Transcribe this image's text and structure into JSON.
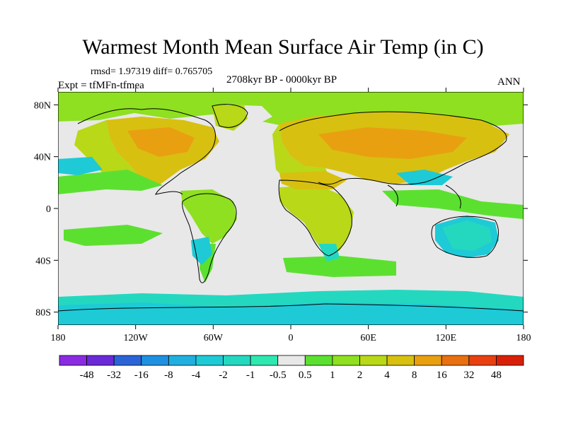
{
  "header": {
    "title": "Warmest Month Mean Surface Air Temp (in C)",
    "stats": "rmsd= 1.97319 diff= 0.765705",
    "expt": "Expt = tfMFn-tfmea",
    "period": "2708kyr BP - 0000kyr BP",
    "season": "ANN"
  },
  "axes": {
    "lon_ticks": [
      "180",
      "120W",
      "60W",
      "0",
      "60E",
      "120E",
      "180"
    ],
    "lat_ticks": [
      "80N",
      "40N",
      "0",
      "40S",
      "80S"
    ],
    "lon_range": [
      -180,
      180
    ],
    "lat_range": [
      -90,
      90
    ]
  },
  "colorbar": {
    "labels": [
      "-48",
      "-32",
      "-16",
      "-8",
      "-4",
      "-2",
      "-1",
      "-0.5",
      "0.5",
      "1",
      "2",
      "4",
      "8",
      "16",
      "32",
      "48"
    ],
    "colors": [
      "#8a2be2",
      "#6a2ad8",
      "#2b64d6",
      "#1e90e0",
      "#20b0e0",
      "#1ecad6",
      "#24d8c0",
      "#2ee8b0",
      "#e8e8e8",
      "#5ce030",
      "#8ee020",
      "#b8d818",
      "#d8c010",
      "#e8a010",
      "#e87010",
      "#e84010",
      "#d82008"
    ]
  },
  "map": {
    "background_color": "#e8e8e8",
    "coastline_color": "#000000"
  }
}
